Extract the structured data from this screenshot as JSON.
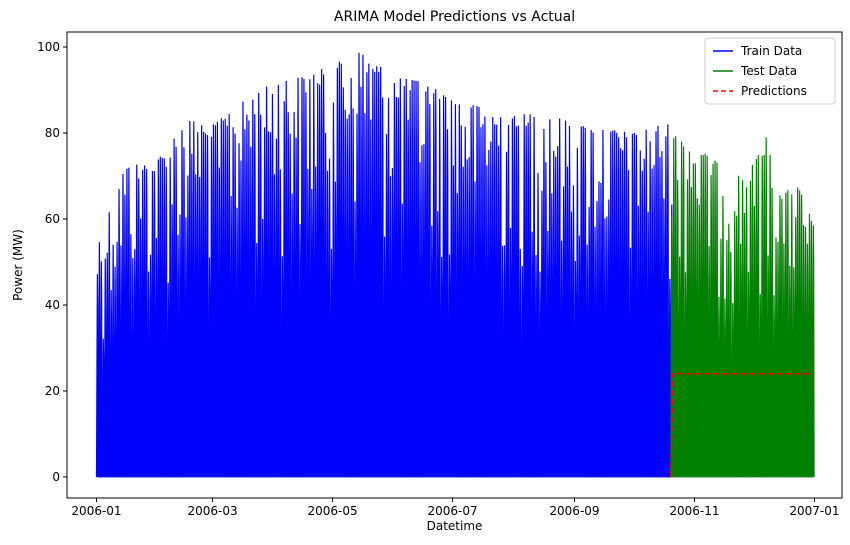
{
  "chart_data": {
    "type": "line",
    "title": "ARIMA Model Predictions vs Actual",
    "xlabel": "Datetime",
    "ylabel": "Power (MW)",
    "xlim": [
      "2005-12-17",
      "2007-01-15"
    ],
    "ylim": [
      -4.9,
      103.5
    ],
    "grid": false,
    "legend_position": "top-right",
    "x_ticks": [
      "2006-01",
      "2006-03",
      "2006-05",
      "2006-07",
      "2006-09",
      "2006-11",
      "2007-01"
    ],
    "y_ticks": [
      0,
      20,
      40,
      60,
      80,
      100
    ],
    "series": [
      {
        "name": "Train Data",
        "color": "#0000ff",
        "style": "solid",
        "x_start": "2006-01-01",
        "x_end": "2006-10-20",
        "x_samples": [
          "2006-01-01",
          "2006-01-15",
          "2006-02-01",
          "2006-02-15",
          "2006-03-01",
          "2006-03-15",
          "2006-04-01",
          "2006-04-15",
          "2006-05-01",
          "2006-05-15",
          "2006-06-01",
          "2006-06-15",
          "2006-07-01",
          "2006-07-15",
          "2006-08-01",
          "2006-08-15",
          "2006-09-01",
          "2006-09-15",
          "2006-10-01",
          "2006-10-15"
        ],
        "daily_peak_envelope": [
          54,
          72,
          74,
          83,
          82,
          87,
          92,
          93,
          96,
          99,
          93,
          92,
          88,
          86,
          84,
          85,
          82,
          81,
          80,
          82
        ],
        "daily_min": 0
      },
      {
        "name": "Test Data",
        "color": "#008000",
        "style": "solid",
        "x_start": "2006-10-20",
        "x_end": "2006-12-31",
        "x_samples": [
          "2006-10-20",
          "2006-10-27",
          "2006-11-03",
          "2006-11-10",
          "2006-11-17",
          "2006-11-24",
          "2006-12-01",
          "2006-12-08",
          "2006-12-15",
          "2006-12-22",
          "2006-12-31"
        ],
        "daily_peak_envelope": [
          79,
          81,
          76,
          74,
          71,
          70,
          73,
          80,
          65,
          69,
          59
        ],
        "daily_min": 0
      },
      {
        "name": "Predictions",
        "color": "#ff0000",
        "style": "dashed",
        "x": [
          "2006-10-20",
          "2006-10-21",
          "2006-12-31"
        ],
        "values": [
          0,
          24,
          24
        ]
      }
    ]
  }
}
